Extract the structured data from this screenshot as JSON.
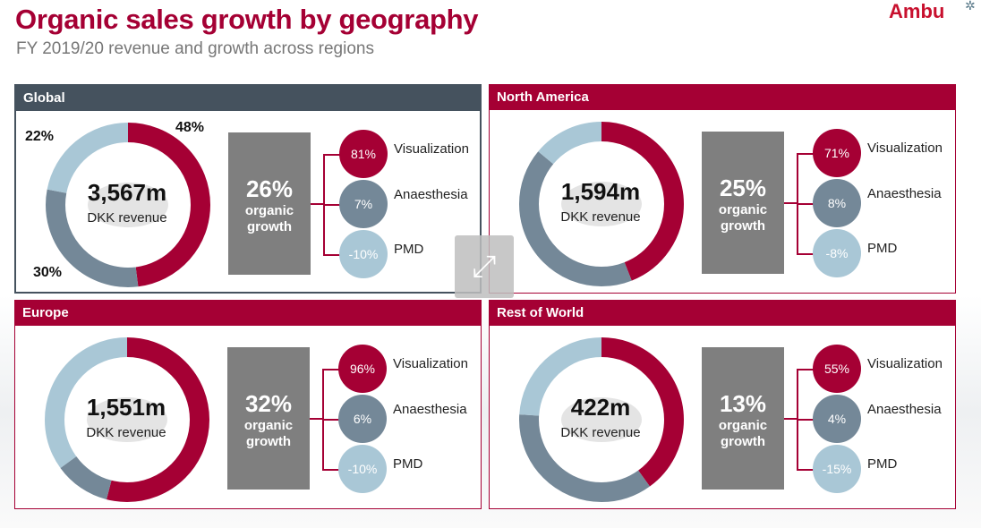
{
  "header": {
    "title": "Organic sales growth by geography",
    "subtitle": "FY 2019/20 revenue and growth across regions",
    "logo": "Ambu"
  },
  "colors": {
    "accent": "#a50034",
    "dark": "#45525e",
    "viz": "#a50034",
    "anaesthesia": "#748898",
    "pmd": "#a9c7d6"
  },
  "revenue_label": "DKK revenue",
  "growth_label_1": "organic",
  "growth_label_2": "growth",
  "segment_names": [
    "Visualization",
    "Anaesthesia",
    "PMD"
  ],
  "panels": [
    {
      "title": "Global",
      "revenue": "3,567m",
      "growth": "26%",
      "segments": [
        "81%",
        "7%",
        "-10%"
      ],
      "shares": {
        "visualization": 48,
        "anaesthesia": 30,
        "pmd": 22
      },
      "share_labels": [
        "48%",
        "30%",
        "22%"
      ]
    },
    {
      "title": "North America",
      "revenue": "1,594m",
      "growth": "25%",
      "segments": [
        "71%",
        "8%",
        "-8%"
      ],
      "shares": {
        "visualization": 44,
        "anaesthesia": 42,
        "pmd": 14
      }
    },
    {
      "title": "Europe",
      "revenue": "1,551m",
      "growth": "32%",
      "segments": [
        "96%",
        "6%",
        "-10%"
      ],
      "shares": {
        "visualization": 54,
        "anaesthesia": 11,
        "pmd": 35
      }
    },
    {
      "title": "Rest of World",
      "revenue": "422m",
      "growth": "13%",
      "segments": [
        "55%",
        "4%",
        "-15%"
      ],
      "shares": {
        "visualization": 40,
        "anaesthesia": 36,
        "pmd": 24
      }
    }
  ],
  "expand_icon": "expand-arrows-icon"
}
